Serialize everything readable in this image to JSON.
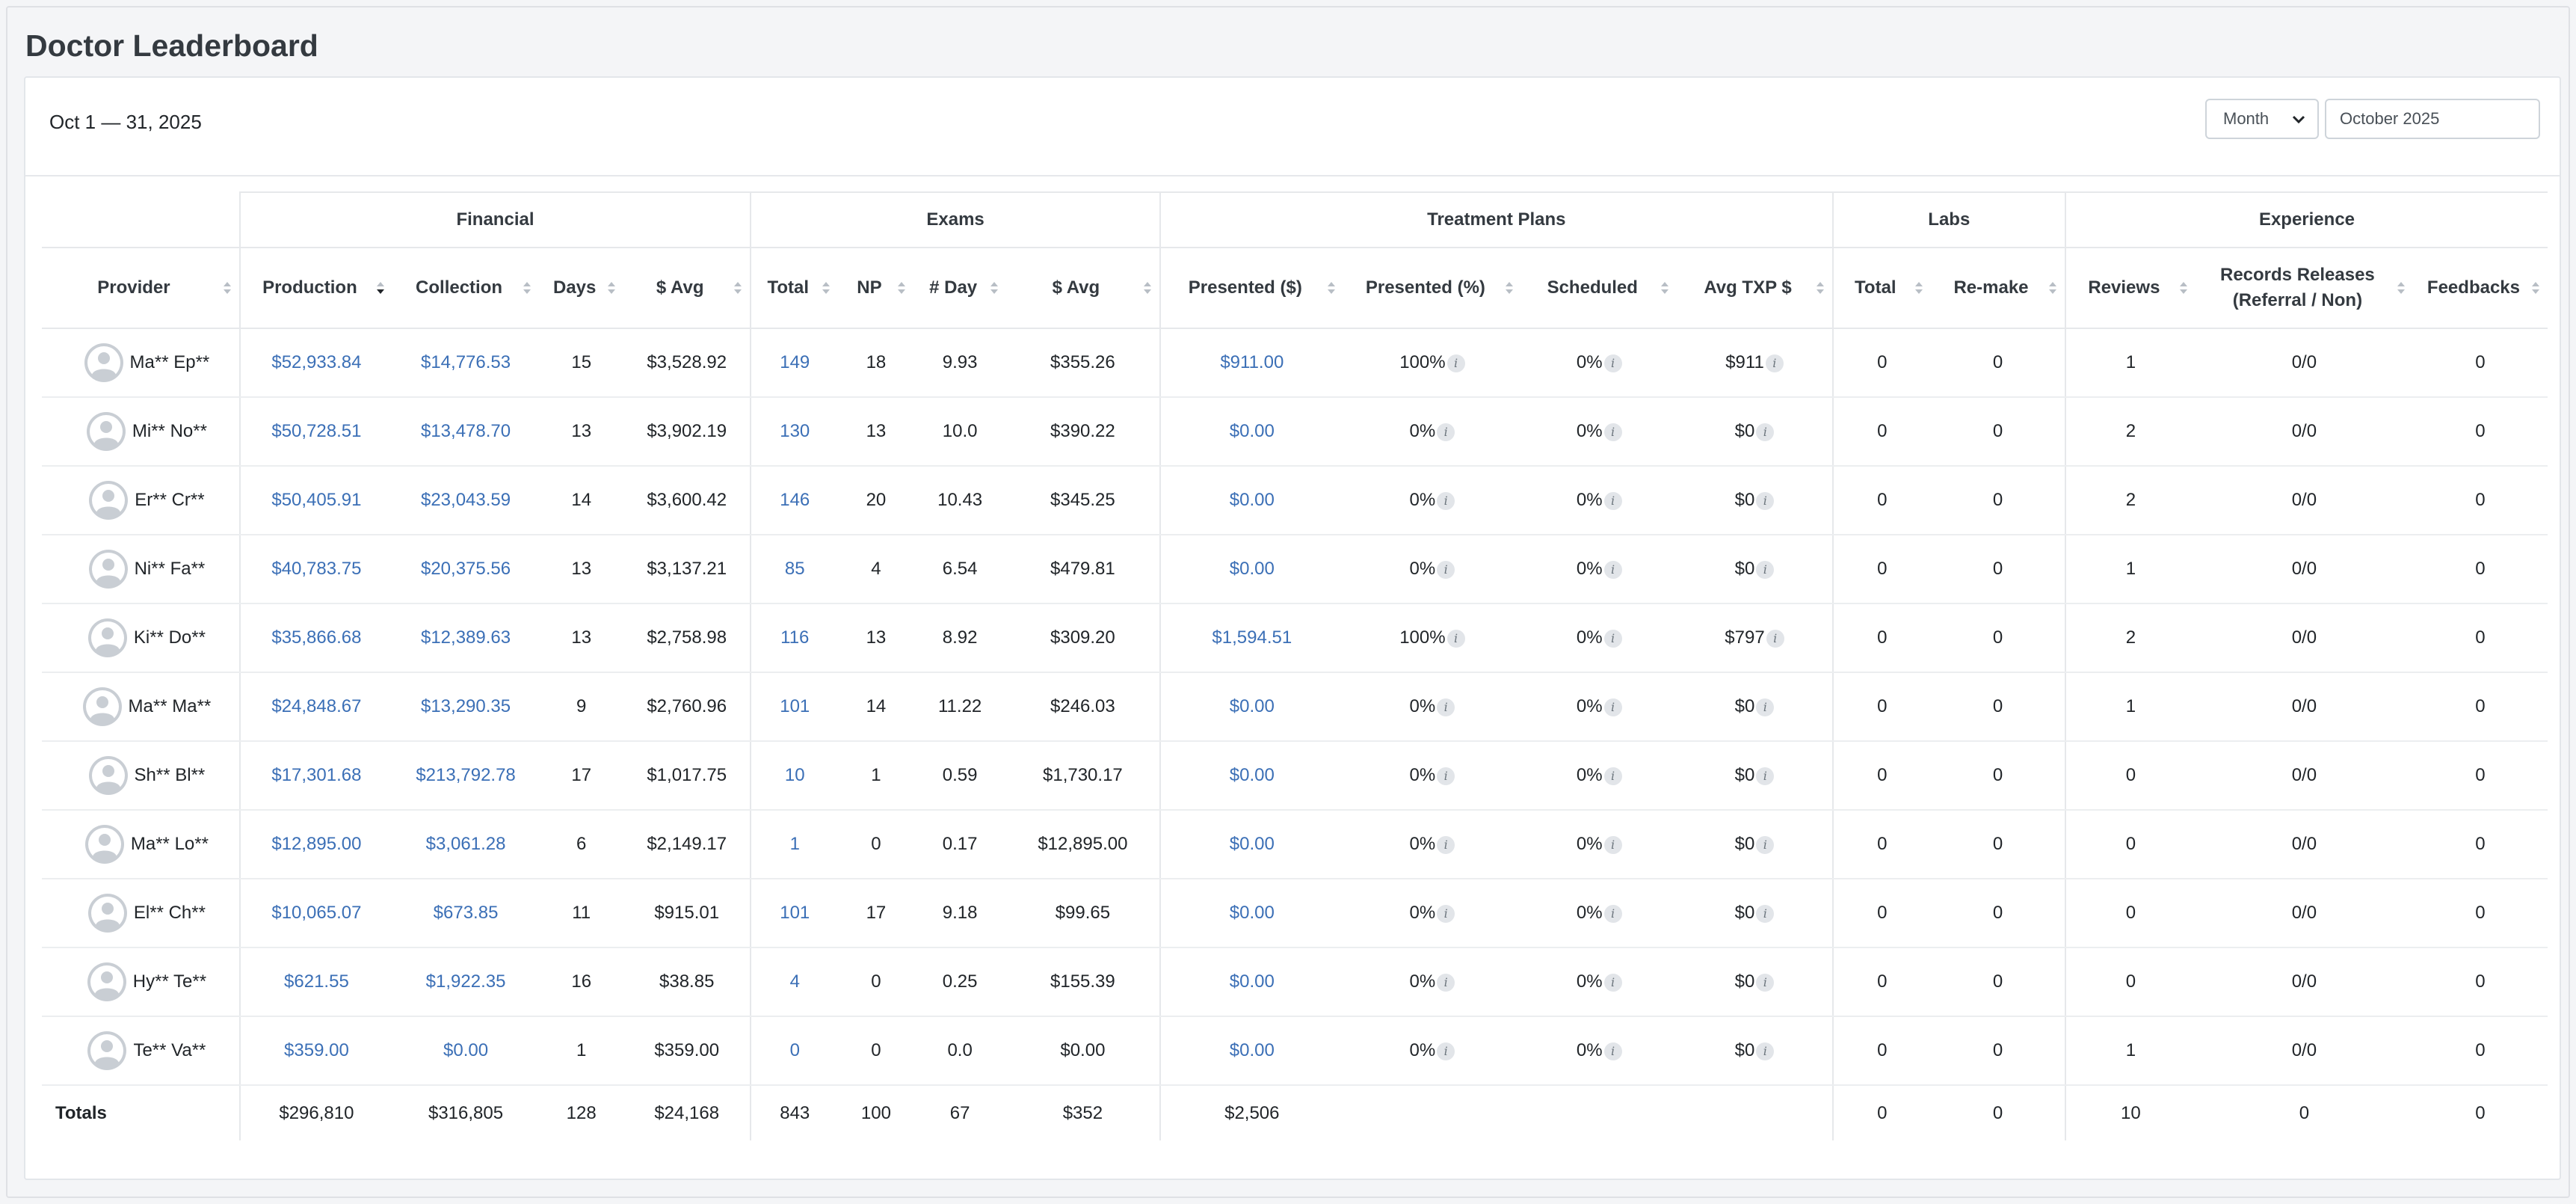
{
  "page_title": "Doctor Leaderboard",
  "date_range": "Oct 1 — 31, 2025",
  "period_select": {
    "value": "Month",
    "options": [
      "Month"
    ]
  },
  "month_input": {
    "value": "October 2025"
  },
  "colors": {
    "link": "#3b6fb6",
    "heading": "#343a40",
    "border": "#e6e8eb"
  },
  "groups": [
    "Financial",
    "Exams",
    "Treatment Plans",
    "Labs",
    "Experience"
  ],
  "columns": {
    "provider": "Provider",
    "production": "Production",
    "collection": "Collection",
    "days": "Days",
    "fin_avg": "$ Avg",
    "exam_total": "Total",
    "np": "NP",
    "per_day": "# Day",
    "exam_avg": "$ Avg",
    "presented_amt": "Presented ($)",
    "presented_pct": "Presented (%)",
    "scheduled": "Scheduled",
    "avg_txp": "Avg TXP $",
    "labs_total": "Total",
    "remake": "Re-make",
    "reviews": "Reviews",
    "records_line1": "Records Releases",
    "records_line2": "(Referral / Non)",
    "feedbacks": "Feedbacks"
  },
  "rows": [
    {
      "name": "Ma** Ep**",
      "production": "$52,933.84",
      "collection": "$14,776.53",
      "days": "15",
      "fin_avg": "$3,528.92",
      "exam_total": "149",
      "np": "18",
      "per_day": "9.93",
      "exam_avg": "$355.26",
      "presented_amt": "$911.00",
      "presented_pct": "100%",
      "scheduled": "0%",
      "avg_txp": "$911",
      "labs_total": "0",
      "remake": "0",
      "reviews": "1",
      "records": "0/0",
      "feedbacks": "0"
    },
    {
      "name": "Mi** No**",
      "production": "$50,728.51",
      "collection": "$13,478.70",
      "days": "13",
      "fin_avg": "$3,902.19",
      "exam_total": "130",
      "np": "13",
      "per_day": "10.0",
      "exam_avg": "$390.22",
      "presented_amt": "$0.00",
      "presented_pct": "0%",
      "scheduled": "0%",
      "avg_txp": "$0",
      "labs_total": "0",
      "remake": "0",
      "reviews": "2",
      "records": "0/0",
      "feedbacks": "0"
    },
    {
      "name": "Er** Cr**",
      "production": "$50,405.91",
      "collection": "$23,043.59",
      "days": "14",
      "fin_avg": "$3,600.42",
      "exam_total": "146",
      "np": "20",
      "per_day": "10.43",
      "exam_avg": "$345.25",
      "presented_amt": "$0.00",
      "presented_pct": "0%",
      "scheduled": "0%",
      "avg_txp": "$0",
      "labs_total": "0",
      "remake": "0",
      "reviews": "2",
      "records": "0/0",
      "feedbacks": "0"
    },
    {
      "name": "Ni** Fa**",
      "production": "$40,783.75",
      "collection": "$20,375.56",
      "days": "13",
      "fin_avg": "$3,137.21",
      "exam_total": "85",
      "np": "4",
      "per_day": "6.54",
      "exam_avg": "$479.81",
      "presented_amt": "$0.00",
      "presented_pct": "0%",
      "scheduled": "0%",
      "avg_txp": "$0",
      "labs_total": "0",
      "remake": "0",
      "reviews": "1",
      "records": "0/0",
      "feedbacks": "0"
    },
    {
      "name": "Ki** Do**",
      "production": "$35,866.68",
      "collection": "$12,389.63",
      "days": "13",
      "fin_avg": "$2,758.98",
      "exam_total": "116",
      "np": "13",
      "per_day": "8.92",
      "exam_avg": "$309.20",
      "presented_amt": "$1,594.51",
      "presented_pct": "100%",
      "scheduled": "0%",
      "avg_txp": "$797",
      "labs_total": "0",
      "remake": "0",
      "reviews": "2",
      "records": "0/0",
      "feedbacks": "0"
    },
    {
      "name": "Ma** Ma**",
      "production": "$24,848.67",
      "collection": "$13,290.35",
      "days": "9",
      "fin_avg": "$2,760.96",
      "exam_total": "101",
      "np": "14",
      "per_day": "11.22",
      "exam_avg": "$246.03",
      "presented_amt": "$0.00",
      "presented_pct": "0%",
      "scheduled": "0%",
      "avg_txp": "$0",
      "labs_total": "0",
      "remake": "0",
      "reviews": "1",
      "records": "0/0",
      "feedbacks": "0"
    },
    {
      "name": "Sh** Bl**",
      "production": "$17,301.68",
      "collection": "$213,792.78",
      "days": "17",
      "fin_avg": "$1,017.75",
      "exam_total": "10",
      "np": "1",
      "per_day": "0.59",
      "exam_avg": "$1,730.17",
      "presented_amt": "$0.00",
      "presented_pct": "0%",
      "scheduled": "0%",
      "avg_txp": "$0",
      "labs_total": "0",
      "remake": "0",
      "reviews": "0",
      "records": "0/0",
      "feedbacks": "0"
    },
    {
      "name": "Ma** Lo**",
      "production": "$12,895.00",
      "collection": "$3,061.28",
      "days": "6",
      "fin_avg": "$2,149.17",
      "exam_total": "1",
      "np": "0",
      "per_day": "0.17",
      "exam_avg": "$12,895.00",
      "presented_amt": "$0.00",
      "presented_pct": "0%",
      "scheduled": "0%",
      "avg_txp": "$0",
      "labs_total": "0",
      "remake": "0",
      "reviews": "0",
      "records": "0/0",
      "feedbacks": "0"
    },
    {
      "name": "El** Ch**",
      "production": "$10,065.07",
      "collection": "$673.85",
      "days": "11",
      "fin_avg": "$915.01",
      "exam_total": "101",
      "np": "17",
      "per_day": "9.18",
      "exam_avg": "$99.65",
      "presented_amt": "$0.00",
      "presented_pct": "0%",
      "scheduled": "0%",
      "avg_txp": "$0",
      "labs_total": "0",
      "remake": "0",
      "reviews": "0",
      "records": "0/0",
      "feedbacks": "0"
    },
    {
      "name": "Hy** Te**",
      "production": "$621.55",
      "collection": "$1,922.35",
      "days": "16",
      "fin_avg": "$38.85",
      "exam_total": "4",
      "np": "0",
      "per_day": "0.25",
      "exam_avg": "$155.39",
      "presented_amt": "$0.00",
      "presented_pct": "0%",
      "scheduled": "0%",
      "avg_txp": "$0",
      "labs_total": "0",
      "remake": "0",
      "reviews": "0",
      "records": "0/0",
      "feedbacks": "0"
    },
    {
      "name": "Te** Va**",
      "production": "$359.00",
      "collection": "$0.00",
      "days": "1",
      "fin_avg": "$359.00",
      "exam_total": "0",
      "np": "0",
      "per_day": "0.0",
      "exam_avg": "$0.00",
      "presented_amt": "$0.00",
      "presented_pct": "0%",
      "scheduled": "0%",
      "avg_txp": "$0",
      "labs_total": "0",
      "remake": "0",
      "reviews": "1",
      "records": "0/0",
      "feedbacks": "0"
    }
  ],
  "totals": {
    "label": "Totals",
    "production": "$296,810",
    "collection": "$316,805",
    "days": "128",
    "fin_avg": "$24,168",
    "exam_total": "843",
    "np": "100",
    "per_day": "67",
    "exam_avg": "$352",
    "presented_amt": "$2,506",
    "labs_total": "0",
    "remake": "0",
    "reviews": "10",
    "records": "0",
    "feedbacks": "0"
  },
  "info_glyph": "i"
}
